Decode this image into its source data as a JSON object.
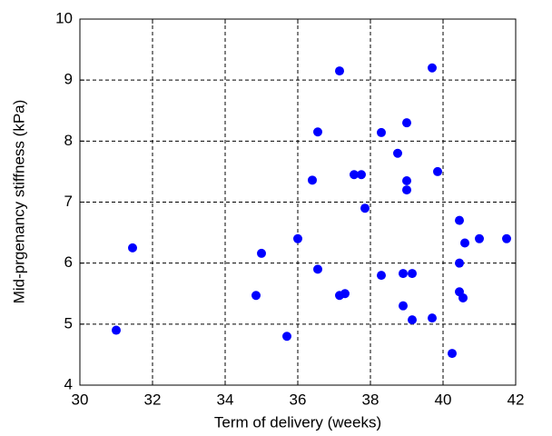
{
  "chart_data": {
    "type": "scatter",
    "xlabel": "Term of delivery (weeks)",
    "ylabel": "Mid-prgenancy stiffness (kPa)",
    "color": "#0000ff",
    "grid": true,
    "xlim": [
      30,
      42
    ],
    "xticks": [
      30,
      32,
      34,
      36,
      38,
      40,
      42
    ],
    "ylim": [
      4,
      10
    ],
    "yticks": [
      4,
      5,
      6,
      7,
      8,
      9,
      10
    ],
    "x": [
      31.0,
      31.45,
      34.85,
      35.0,
      35.7,
      36.0,
      36.4,
      36.55,
      36.55,
      37.15,
      37.15,
      37.3,
      37.55,
      37.75,
      37.85,
      38.3,
      38.3,
      38.75,
      38.9,
      38.9,
      39.0,
      39.0,
      39.0,
      39.15,
      39.15,
      39.7,
      39.7,
      39.85,
      40.25,
      40.45,
      40.45,
      40.45,
      40.55,
      40.6,
      41.0,
      41.75
    ],
    "values": [
      4.9,
      6.25,
      5.47,
      6.16,
      4.8,
      6.4,
      7.36,
      5.9,
      8.15,
      9.15,
      5.47,
      5.5,
      7.45,
      7.45,
      6.9,
      8.14,
      5.8,
      7.8,
      5.3,
      5.83,
      8.3,
      7.35,
      7.2,
      5.83,
      5.07,
      9.2,
      5.1,
      7.5,
      4.52,
      6.7,
      6.0,
      5.53,
      5.43,
      6.33,
      6.4,
      6.4
    ]
  }
}
